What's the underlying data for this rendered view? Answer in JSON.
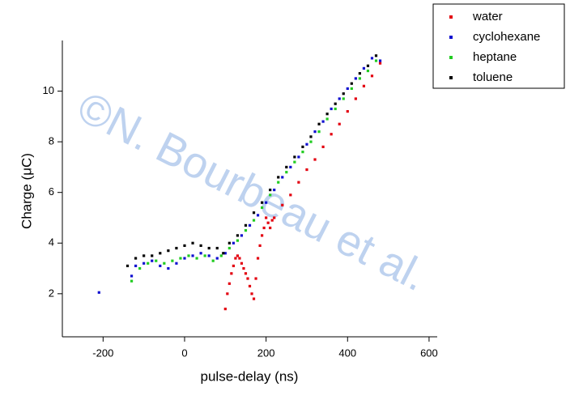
{
  "chart_data": {
    "type": "scatter",
    "x_label": "pulse-delay (ns)",
    "y_label": "Charge (μC)",
    "watermark": "©N. Bourbeau et al.",
    "xlim": [
      -300,
      620
    ],
    "ylim": [
      0.3,
      12
    ],
    "xticks": [
      -200,
      0,
      200,
      400,
      600
    ],
    "yticks": [
      2,
      4,
      6,
      8,
      10
    ],
    "legend": "outside-top-right",
    "series": [
      {
        "name": "water",
        "color": "#e3000f",
        "x": [
          100,
          105,
          110,
          115,
          120,
          125,
          130,
          135,
          140,
          145,
          150,
          155,
          160,
          165,
          170,
          175,
          180,
          185,
          190,
          195,
          200,
          205,
          210,
          215,
          220,
          240,
          260,
          280,
          300,
          320,
          340,
          360,
          380,
          400,
          420,
          440,
          460,
          480
        ],
        "values": [
          1.4,
          2.0,
          2.4,
          2.8,
          3.1,
          3.4,
          3.5,
          3.4,
          3.2,
          3.0,
          2.8,
          2.6,
          2.3,
          2.0,
          1.8,
          2.6,
          3.4,
          3.9,
          4.3,
          4.6,
          5.0,
          4.8,
          4.6,
          4.9,
          5.0,
          5.5,
          5.9,
          6.4,
          6.9,
          7.3,
          7.8,
          8.3,
          8.7,
          9.2,
          9.7,
          10.2,
          10.6,
          11.1
        ]
      },
      {
        "name": "cyclohexane",
        "color": "#1010d0",
        "x": [
          -210,
          -130,
          -120,
          -100,
          -80,
          -60,
          -40,
          -20,
          0,
          20,
          40,
          60,
          80,
          100,
          120,
          140,
          160,
          180,
          200,
          220,
          240,
          260,
          280,
          300,
          320,
          340,
          360,
          380,
          400,
          420,
          440,
          460,
          480
        ],
        "values": [
          2.05,
          2.7,
          3.1,
          3.2,
          3.3,
          3.1,
          3.0,
          3.2,
          3.4,
          3.5,
          3.6,
          3.5,
          3.4,
          3.6,
          4.0,
          4.3,
          4.7,
          5.1,
          5.6,
          6.1,
          6.6,
          7.0,
          7.4,
          7.9,
          8.4,
          8.8,
          9.3,
          9.7,
          10.1,
          10.5,
          10.9,
          11.3,
          11.2
        ]
      },
      {
        "name": "heptane",
        "color": "#22cc22",
        "x": [
          -130,
          -110,
          -90,
          -70,
          -50,
          -30,
          -10,
          10,
          30,
          50,
          70,
          90,
          110,
          130,
          150,
          170,
          190,
          210,
          230,
          250,
          270,
          290,
          310,
          330,
          350,
          370,
          390,
          410,
          430,
          450,
          470
        ],
        "values": [
          2.5,
          3.0,
          3.2,
          3.3,
          3.2,
          3.3,
          3.4,
          3.5,
          3.4,
          3.5,
          3.3,
          3.5,
          3.8,
          4.1,
          4.5,
          4.9,
          5.4,
          5.9,
          6.4,
          6.8,
          7.2,
          7.6,
          8.0,
          8.4,
          8.9,
          9.3,
          9.7,
          10.1,
          10.5,
          10.8,
          11.2
        ]
      },
      {
        "name": "toluene",
        "color": "#000000",
        "x": [
          -140,
          -120,
          -100,
          -80,
          -60,
          -40,
          -20,
          0,
          20,
          40,
          60,
          80,
          95,
          110,
          130,
          150,
          170,
          190,
          210,
          230,
          250,
          270,
          290,
          310,
          330,
          350,
          370,
          390,
          410,
          430,
          450,
          470
        ],
        "values": [
          3.1,
          3.4,
          3.5,
          3.5,
          3.6,
          3.7,
          3.8,
          3.9,
          4.0,
          3.9,
          3.8,
          3.8,
          3.6,
          4.0,
          4.3,
          4.7,
          5.2,
          5.6,
          6.1,
          6.6,
          7.0,
          7.4,
          7.8,
          8.2,
          8.7,
          9.1,
          9.5,
          9.9,
          10.3,
          10.7,
          11.0,
          11.4
        ]
      }
    ]
  }
}
